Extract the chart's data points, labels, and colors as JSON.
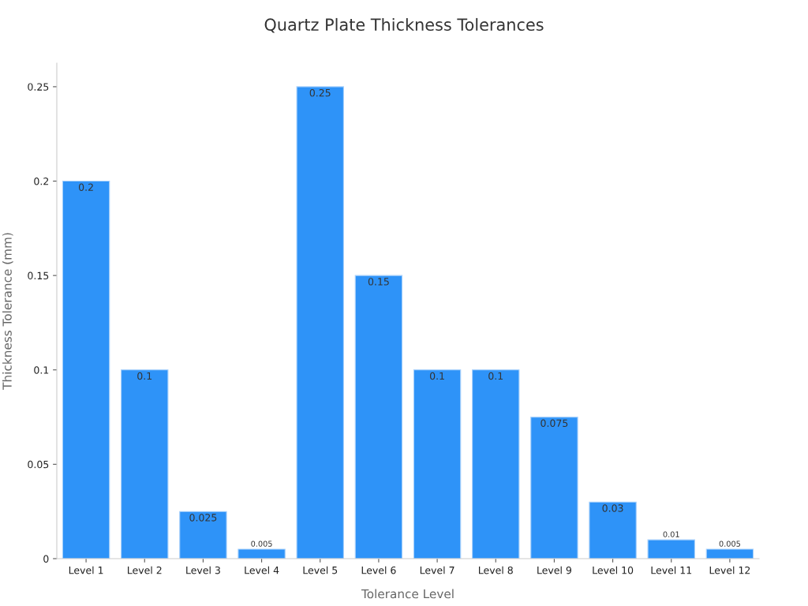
{
  "chart_data": {
    "type": "bar",
    "title": "Quartz Plate Thickness Tolerances",
    "xlabel": "Tolerance Level",
    "ylabel": "Thickness Tolerance (mm)",
    "categories": [
      "Level 1",
      "Level 2",
      "Level 3",
      "Level 4",
      "Level 5",
      "Level 6",
      "Level 7",
      "Level 8",
      "Level 9",
      "Level 10",
      "Level 11",
      "Level 12"
    ],
    "values": [
      0.2,
      0.1,
      0.025,
      0.005,
      0.25,
      0.15,
      0.1,
      0.1,
      0.075,
      0.03,
      0.01,
      0.005
    ],
    "color": "#2e93f8",
    "ylim": [
      0,
      0.2625
    ],
    "yticks": [
      0,
      0.05,
      0.1,
      0.15,
      0.2,
      0.25
    ],
    "grid": false,
    "data_labels": true
  }
}
